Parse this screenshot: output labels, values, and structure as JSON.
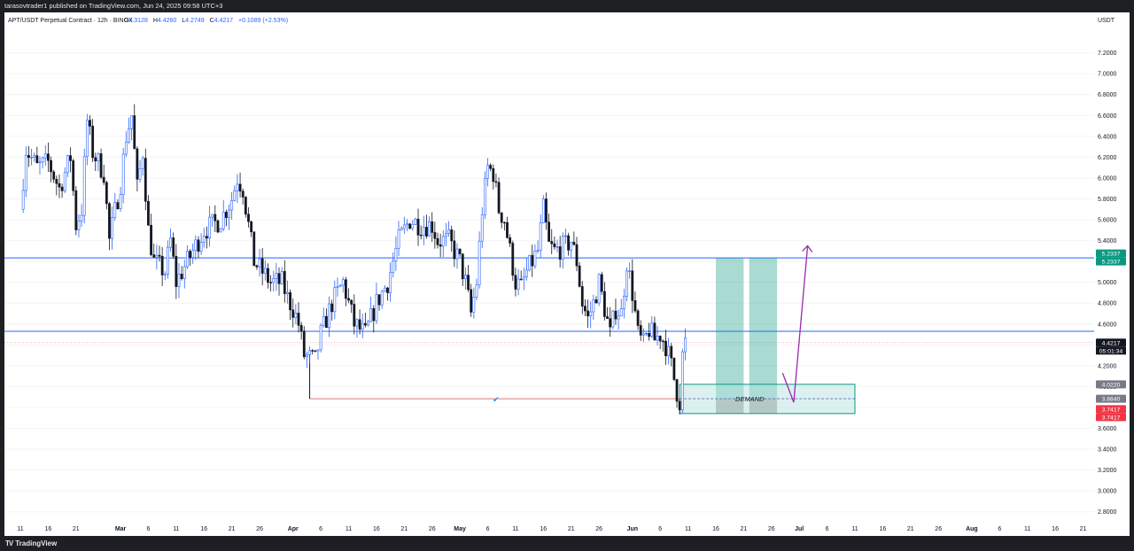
{
  "header": {
    "published": "tarasovtrader1 published on TradingView.com, Jun 24, 2025 09:58 UTC+3"
  },
  "footer": {
    "brand": "TradingView"
  },
  "legend": {
    "symbol": "APT/USDT Perpetual Contract · 12h · BINGX",
    "o_label": "O",
    "o": "4.3128",
    "h_label": "H",
    "h": "4.4260",
    "l_label": "L",
    "l": "4.2749",
    "c_label": "C",
    "c": "4.4217",
    "change": "+0.1089 (+2.53%)"
  },
  "currency": "USDT",
  "colors": {
    "up": "#2962ff",
    "down": "#131722",
    "accent_line": "#2962ff",
    "green": "#089981",
    "red": "#f23645",
    "purple": "#9c27b0",
    "demand_fill": "#b2dfdb"
  },
  "chart_data": {
    "type": "candlestick",
    "interval": "12h",
    "ylim": [
      2.7,
      7.35
    ],
    "y_ticks": [
      "7.2000",
      "7.0000",
      "6.8000",
      "6.6000",
      "6.4000",
      "6.2000",
      "6.0000",
      "5.8000",
      "5.6000",
      "5.4000",
      "5.2000",
      "5.0000",
      "4.8000",
      "4.6000",
      "4.4000",
      "4.2000",
      "4.0000",
      "3.8000",
      "3.6000",
      "3.4000",
      "3.2000",
      "3.0000",
      "2.8000"
    ],
    "x_ticks": [
      {
        "day": 0,
        "label": "11"
      },
      {
        "day": 5,
        "label": "16"
      },
      {
        "day": 10,
        "label": "21"
      },
      {
        "day": 18,
        "label": "Mar"
      },
      {
        "day": 23,
        "label": "6"
      },
      {
        "day": 28,
        "label": "11"
      },
      {
        "day": 33,
        "label": "16"
      },
      {
        "day": 38,
        "label": "21"
      },
      {
        "day": 43,
        "label": "26"
      },
      {
        "day": 49,
        "label": "Apr"
      },
      {
        "day": 54,
        "label": "6"
      },
      {
        "day": 59,
        "label": "11"
      },
      {
        "day": 64,
        "label": "16"
      },
      {
        "day": 69,
        "label": "21"
      },
      {
        "day": 74,
        "label": "26"
      },
      {
        "day": 79,
        "label": "May"
      },
      {
        "day": 84,
        "label": "6"
      },
      {
        "day": 89,
        "label": "11"
      },
      {
        "day": 94,
        "label": "16"
      },
      {
        "day": 99,
        "label": "21"
      },
      {
        "day": 104,
        "label": "26"
      },
      {
        "day": 110,
        "label": "Jun"
      },
      {
        "day": 115,
        "label": "6"
      },
      {
        "day": 120,
        "label": "11"
      },
      {
        "day": 125,
        "label": "16"
      },
      {
        "day": 130,
        "label": "21"
      },
      {
        "day": 135,
        "label": "26"
      },
      {
        "day": 140,
        "label": "Jul"
      },
      {
        "day": 145,
        "label": "6"
      },
      {
        "day": 150,
        "label": "11"
      },
      {
        "day": 155,
        "label": "16"
      },
      {
        "day": 160,
        "label": "21"
      },
      {
        "day": 165,
        "label": "26"
      },
      {
        "day": 171,
        "label": "Aug"
      },
      {
        "day": 176,
        "label": "6"
      },
      {
        "day": 181,
        "label": "11"
      },
      {
        "day": 186,
        "label": "16"
      },
      {
        "day": 191,
        "label": "21"
      }
    ],
    "anchors": [
      [
        0,
        5.7
      ],
      [
        1,
        6.28
      ],
      [
        3,
        6.1
      ],
      [
        5,
        6.15
      ],
      [
        7,
        5.9
      ],
      [
        9,
        6.2
      ],
      [
        10,
        5.55
      ],
      [
        11,
        5.7
      ],
      [
        12,
        6.55
      ],
      [
        13,
        6.25
      ],
      [
        15,
        6.05
      ],
      [
        16,
        5.4
      ],
      [
        18,
        5.95
      ],
      [
        19,
        6.4
      ],
      [
        20,
        6.6
      ],
      [
        21,
        5.9
      ],
      [
        22,
        6.25
      ],
      [
        23,
        5.5
      ],
      [
        24,
        5.2
      ],
      [
        26,
        5.1
      ],
      [
        27,
        5.4
      ],
      [
        28,
        5.0
      ],
      [
        30,
        5.2
      ],
      [
        33,
        5.5
      ],
      [
        36,
        5.6
      ],
      [
        38,
        5.8
      ],
      [
        39,
        6.0
      ],
      [
        40,
        5.9
      ],
      [
        42,
        5.2
      ],
      [
        45,
        5.0
      ],
      [
        47,
        5.0
      ],
      [
        48,
        4.85
      ],
      [
        49,
        4.75
      ],
      [
        50,
        4.6
      ],
      [
        51,
        4.3
      ],
      [
        53,
        4.25
      ],
      [
        54,
        4.5
      ],
      [
        56,
        4.8
      ],
      [
        58,
        5.0
      ],
      [
        60,
        4.6
      ],
      [
        62,
        4.5
      ],
      [
        64,
        4.8
      ],
      [
        66,
        5.0
      ],
      [
        68,
        5.4
      ],
      [
        70,
        5.6
      ],
      [
        72,
        5.55
      ],
      [
        74,
        5.55
      ],
      [
        75,
        5.4
      ],
      [
        77,
        5.4
      ],
      [
        79,
        5.2
      ],
      [
        80,
        5.0
      ],
      [
        81,
        4.7
      ],
      [
        82,
        5.0
      ],
      [
        83,
        5.7
      ],
      [
        84,
        6.1
      ],
      [
        85,
        6.05
      ],
      [
        86,
        5.7
      ],
      [
        87,
        5.6
      ],
      [
        88,
        5.3
      ],
      [
        89,
        5.0
      ],
      [
        90,
        4.95
      ],
      [
        91,
        5.1
      ],
      [
        93,
        5.3
      ],
      [
        94,
        5.7
      ],
      [
        95,
        5.35
      ],
      [
        96,
        5.3
      ],
      [
        98,
        5.35
      ],
      [
        99,
        5.4
      ],
      [
        100,
        5.2
      ],
      [
        101,
        4.8
      ],
      [
        102,
        4.65
      ],
      [
        103,
        4.8
      ],
      [
        104,
        5.0
      ],
      [
        105,
        4.75
      ],
      [
        106,
        4.5
      ],
      [
        107,
        4.75
      ],
      [
        108,
        4.7
      ],
      [
        109,
        5.2
      ],
      [
        110,
        4.9
      ],
      [
        111,
        4.5
      ],
      [
        112,
        4.4
      ],
      [
        113,
        4.55
      ],
      [
        114,
        4.45
      ],
      [
        115,
        4.5
      ],
      [
        116,
        4.4
      ],
      [
        117,
        4.2
      ],
      [
        118,
        3.95
      ],
      [
        118.5,
        3.86
      ],
      [
        119,
        4.3
      ],
      [
        119.5,
        4.42
      ]
    ],
    "levels": {
      "resistance": 5.2337,
      "mid_line": 4.53,
      "current": 4.4217,
      "sweep_low": 3.884,
      "zone_top": 4.022,
      "zone_bottom": 3.7417
    },
    "sweep_line": {
      "from_day": 52,
      "to_day": 119
    },
    "green_bars": [
      {
        "from_day": 125,
        "to_day": 130
      },
      {
        "from_day": 131,
        "to_day": 136
      }
    ],
    "demand_zone": {
      "from_day": 118.5,
      "to_day": 150,
      "label": "DEMAND"
    },
    "arrow": {
      "points": [
        {
          "day": 137,
          "price": 4.13
        },
        {
          "day": 139,
          "price": 3.85
        },
        {
          "day": 141.5,
          "price": 5.35
        }
      ]
    },
    "price_tags": [
      {
        "price": 5.2337,
        "label": "5.2337",
        "color": "#089981",
        "offset": -5
      },
      {
        "price": 5.2337,
        "label": "5.2337",
        "color": "#089981",
        "offset": 4
      },
      {
        "price": 4.4217,
        "label": "4.4217",
        "color": "#131722",
        "offset": 0
      },
      {
        "price": 4.022,
        "label": "4.0220",
        "color": "#787b86",
        "offset": 0
      },
      {
        "price": 3.884,
        "label": "3.8840",
        "color": "#787b86",
        "offset": 0
      },
      {
        "price": 3.7417,
        "label": "3.7417",
        "color": "#f23645",
        "offset": -5
      },
      {
        "price": 3.7417,
        "label": "3.7417",
        "color": "#f23645",
        "offset": 4
      }
    ],
    "countdown": "05:01:34"
  }
}
